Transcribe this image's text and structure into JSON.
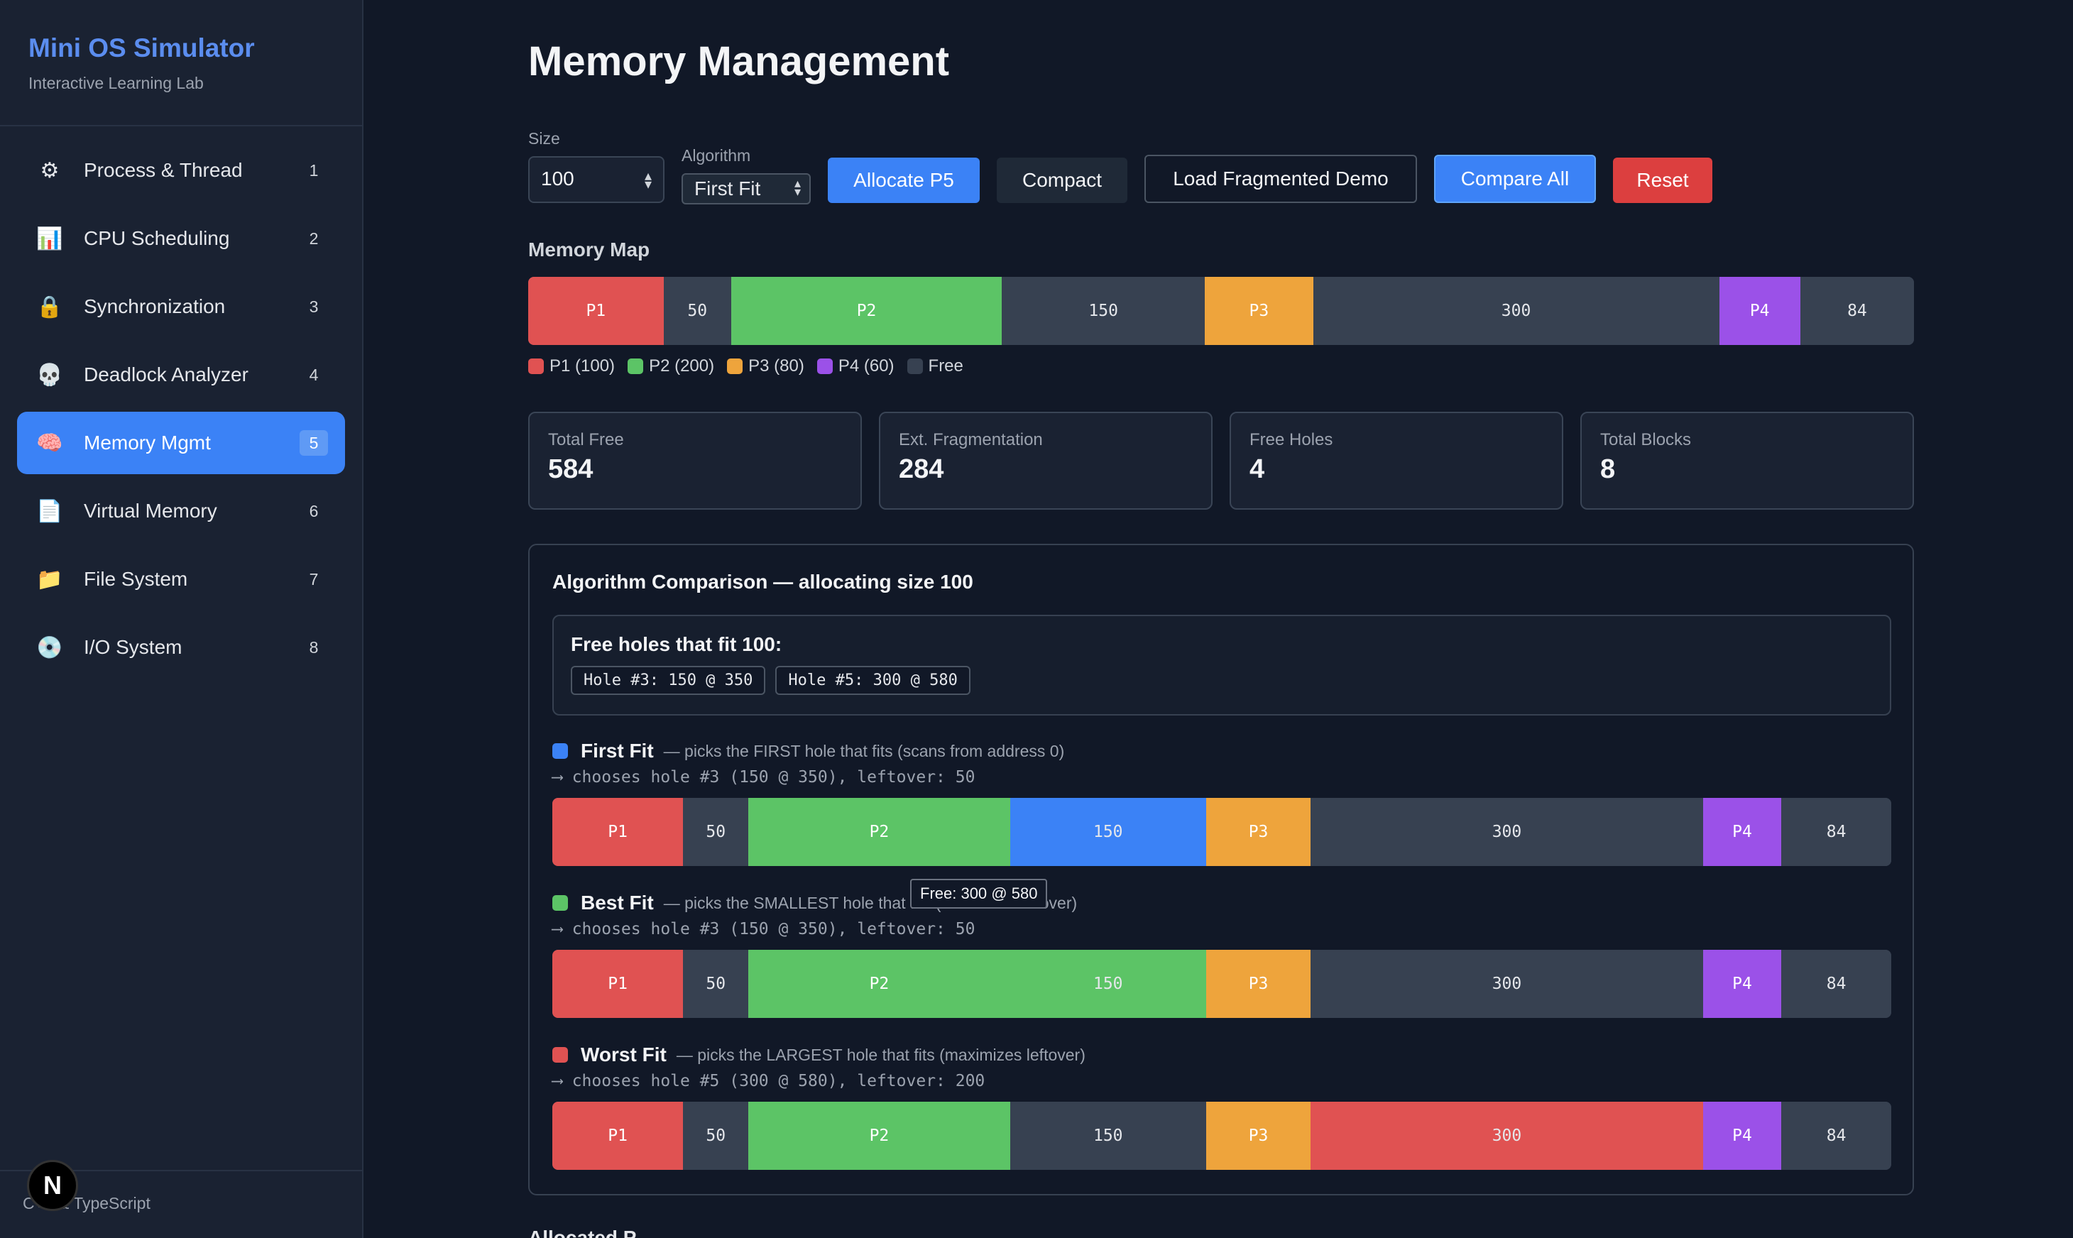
{
  "brand": {
    "title": "Mini OS Simulator",
    "subtitle": "Interactive Learning Lab"
  },
  "nav": [
    {
      "label": "Process & Thread",
      "num": "1",
      "icon": "⚙",
      "icon_name": "gear-icon"
    },
    {
      "label": "CPU Scheduling",
      "num": "2",
      "icon": "📊",
      "icon_name": "bar-chart-icon"
    },
    {
      "label": "Synchronization",
      "num": "3",
      "icon": "🔒",
      "icon_name": "lock-icon"
    },
    {
      "label": "Deadlock Analyzer",
      "num": "4",
      "icon": "💀",
      "icon_name": "skull-icon"
    },
    {
      "label": "Memory Mgmt",
      "num": "5",
      "icon": "🧠",
      "icon_name": "brain-icon",
      "active": true
    },
    {
      "label": "Virtual Memory",
      "num": "6",
      "icon": "📄",
      "icon_name": "page-icon"
    },
    {
      "label": "File System",
      "num": "7",
      "icon": "📁",
      "icon_name": "folder-icon"
    },
    {
      "label": "I/O System",
      "num": "8",
      "icon": "💿",
      "icon_name": "disc-icon"
    }
  ],
  "footer": "C++ & TypeScript",
  "n_badge": "N",
  "page_title": "Memory Management",
  "controls": {
    "size_label": "Size",
    "size_value": "100",
    "algorithm_label": "Algorithm",
    "algorithm_value": "First Fit",
    "allocate": "Allocate P5",
    "compact": "Compact",
    "load_demo": "Load Fragmented Demo",
    "compare_all": "Compare All",
    "reset": "Reset"
  },
  "memory_map": {
    "label": "Memory Map",
    "segments": [
      {
        "label": "P1",
        "size": 100,
        "type": "P1"
      },
      {
        "label": "50",
        "size": 50,
        "type": "free"
      },
      {
        "label": "P2",
        "size": 200,
        "type": "P2"
      },
      {
        "label": "150",
        "size": 150,
        "type": "free"
      },
      {
        "label": "P3",
        "size": 80,
        "type": "P3"
      },
      {
        "label": "300",
        "size": 300,
        "type": "free"
      },
      {
        "label": "P4",
        "size": 60,
        "type": "P4"
      },
      {
        "label": "84",
        "size": 84,
        "type": "free"
      }
    ],
    "legend": [
      {
        "label": "P1 (100)",
        "type": "P1"
      },
      {
        "label": "P2 (200)",
        "type": "P2"
      },
      {
        "label": "P3 (80)",
        "type": "P3"
      },
      {
        "label": "P4 (60)",
        "type": "P4"
      },
      {
        "label": "Free",
        "type": "free"
      }
    ]
  },
  "colors": {
    "P1": "#e05252",
    "P2": "#5cc466",
    "P3": "#eea43c",
    "P4": "#9b51e8",
    "free": "#374151",
    "first": "#3b82f6",
    "best": "#5cc466",
    "worst": "#e05252"
  },
  "stats": [
    {
      "label": "Total Free",
      "value": "584"
    },
    {
      "label": "Ext. Fragmentation",
      "value": "284"
    },
    {
      "label": "Free Holes",
      "value": "4"
    },
    {
      "label": "Total Blocks",
      "value": "8"
    }
  ],
  "comparison": {
    "title": "Algorithm Comparison — allocating size 100",
    "holes_title": "Free holes that fit 100:",
    "holes": [
      "Hole #3: 150 @ 350",
      "Hole #5: 300 @ 580"
    ],
    "tooltip": "Free: 300 @ 580",
    "algorithms": [
      {
        "name": "First Fit",
        "desc": "— picks the FIRST hole that fits (scans from address 0)",
        "choice": "⟶ chooses hole #3 (150 @ 350), leftover: 50",
        "color_key": "first",
        "chosen_index": 3
      },
      {
        "name": "Best Fit",
        "desc": "— picks the SMALLEST hole that fits (minimizes leftover)",
        "choice": "⟶ chooses hole #3 (150 @ 350), leftover: 50",
        "color_key": "best",
        "chosen_index": 3
      },
      {
        "name": "Worst Fit",
        "desc": "— picks the LARGEST hole that fits (maximizes leftover)",
        "choice": "⟶ chooses hole #5 (300 @ 580), leftover: 200",
        "color_key": "worst",
        "chosen_index": 5
      }
    ]
  },
  "next_section": "Allocated P"
}
